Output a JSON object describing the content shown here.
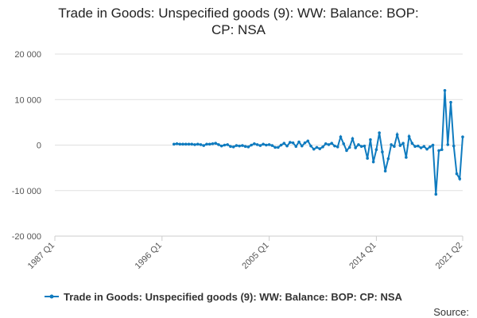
{
  "chart_data": {
    "type": "line",
    "title": "Trade in Goods: Unspecified goods (9): WW: Balance: BOP: CP: NSA",
    "source": "Source:",
    "x": [
      "1997 Q1",
      "1997 Q2",
      "1997 Q3",
      "1997 Q4",
      "1998 Q1",
      "1998 Q2",
      "1998 Q3",
      "1998 Q4",
      "1999 Q1",
      "1999 Q2",
      "1999 Q3",
      "1999 Q4",
      "2000 Q1",
      "2000 Q2",
      "2000 Q3",
      "2000 Q4",
      "2001 Q1",
      "2001 Q2",
      "2001 Q3",
      "2001 Q4",
      "2002 Q1",
      "2002 Q2",
      "2002 Q3",
      "2002 Q4",
      "2003 Q1",
      "2003 Q2",
      "2003 Q3",
      "2003 Q4",
      "2004 Q1",
      "2004 Q2",
      "2004 Q3",
      "2004 Q4",
      "2005 Q1",
      "2005 Q2",
      "2005 Q3",
      "2005 Q4",
      "2006 Q1",
      "2006 Q2",
      "2006 Q3",
      "2006 Q4",
      "2007 Q1",
      "2007 Q2",
      "2007 Q3",
      "2007 Q4",
      "2008 Q1",
      "2008 Q2",
      "2008 Q3",
      "2008 Q4",
      "2009 Q1",
      "2009 Q2",
      "2009 Q3",
      "2009 Q4",
      "2010 Q1",
      "2010 Q2",
      "2010 Q3",
      "2010 Q4",
      "2011 Q1",
      "2011 Q2",
      "2011 Q3",
      "2011 Q4",
      "2012 Q1",
      "2012 Q2",
      "2012 Q3",
      "2012 Q4",
      "2013 Q1",
      "2013 Q2",
      "2013 Q3",
      "2013 Q4",
      "2014 Q1",
      "2014 Q2",
      "2014 Q3",
      "2014 Q4",
      "2015 Q1",
      "2015 Q2",
      "2015 Q3",
      "2015 Q4",
      "2016 Q1",
      "2016 Q2",
      "2016 Q3",
      "2016 Q4",
      "2017 Q1",
      "2017 Q2",
      "2017 Q3",
      "2017 Q4",
      "2018 Q1",
      "2018 Q2",
      "2018 Q3",
      "2018 Q4",
      "2019 Q1",
      "2019 Q2",
      "2019 Q3",
      "2019 Q4",
      "2020 Q1",
      "2020 Q2",
      "2020 Q3",
      "2020 Q4",
      "2021 Q1",
      "2021 Q2"
    ],
    "series": [
      {
        "name": "Trade in Goods: Unspecified goods (9): WW: Balance: BOP: CP: NSA",
        "color": "#0f7bbf",
        "values": [
          200,
          300,
          200,
          200,
          200,
          200,
          200,
          100,
          200,
          100,
          -100,
          200,
          200,
          300,
          400,
          100,
          -200,
          0,
          100,
          -300,
          -400,
          -100,
          -200,
          -100,
          -300,
          -400,
          0,
          300,
          100,
          -100,
          200,
          0,
          100,
          -100,
          -500,
          -500,
          0,
          400,
          -200,
          600,
          500,
          -300,
          700,
          -200,
          500,
          900,
          -200,
          -900,
          -500,
          -800,
          -400,
          300,
          100,
          400,
          -200,
          -400,
          1800,
          300,
          -1200,
          -500,
          1400,
          -600,
          100,
          -300,
          -200,
          -2900,
          1200,
          -3700,
          -1000,
          2700,
          -1500,
          -5700,
          -3000,
          100,
          -300,
          2300,
          -100,
          400,
          -2700,
          1900,
          400,
          -300,
          -200,
          -600,
          -300,
          -900,
          -400,
          0,
          -10800,
          -1200,
          -1000,
          12000,
          100,
          9400,
          -200,
          -6300,
          -7400,
          1800
        ]
      }
    ],
    "xlim": [
      "1987 Q1",
      "2021 Q2"
    ],
    "xticks": [
      "1987 Q1",
      "1996 Q1",
      "2005 Q1",
      "2014 Q1",
      "2021 Q2"
    ],
    "ylim": [
      -20000,
      20000
    ],
    "yticks": [
      {
        "value": -20000,
        "label": "-20 000"
      },
      {
        "value": -10000,
        "label": "-10 000"
      },
      0,
      {
        "value": 10000,
        "label": "10 000"
      },
      {
        "value": 20000,
        "label": "20 000"
      }
    ],
    "grid": true
  }
}
